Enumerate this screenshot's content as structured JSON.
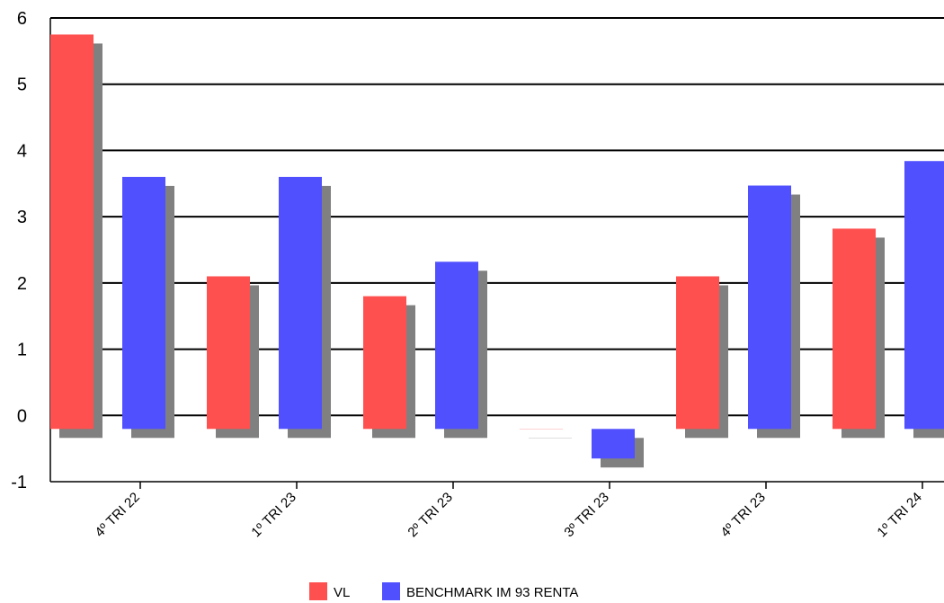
{
  "chart_data": {
    "type": "bar",
    "title": "",
    "xlabel": "",
    "ylabel": "",
    "categories": [
      "4º TRI 22",
      "1º TRI 23",
      "2º TRI 23",
      "3º TRI 23",
      "4º TRI 23",
      "1º TRI 24"
    ],
    "series": [
      {
        "name": "VL",
        "color": "#ff5050",
        "values": [
          5.75,
          2.1,
          1.8,
          -0.2,
          2.1,
          2.82
        ]
      },
      {
        "name": "BENCHMARK IM 93 RENTA",
        "color": "#5050ff",
        "values": [
          3.6,
          3.6,
          2.32,
          -0.65,
          3.47,
          3.84
        ]
      }
    ],
    "ylim": [
      -1,
      6
    ],
    "yticks": [
      -1,
      0,
      1,
      2,
      3,
      4,
      5,
      6
    ],
    "grid": true,
    "legend": "bottom-center",
    "shadow_color": "#808080"
  }
}
